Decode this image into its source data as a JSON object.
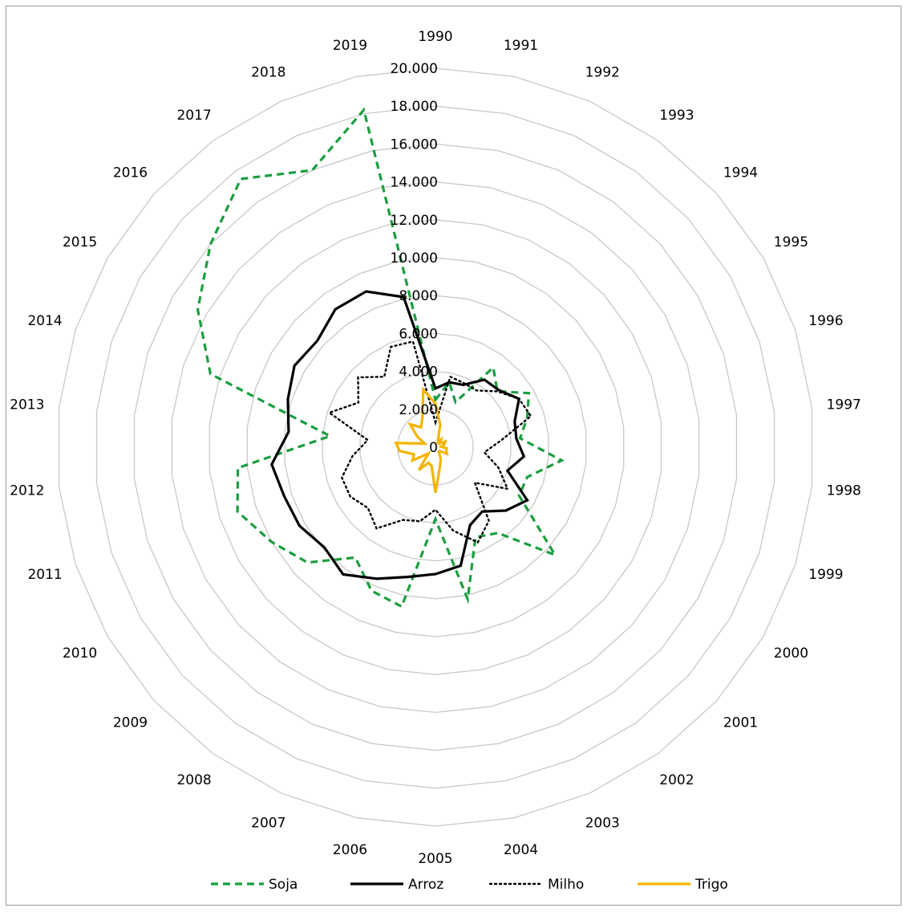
{
  "chart_data": {
    "type": "radar",
    "title": "",
    "categories": [
      "1990",
      "1991",
      "1992",
      "1993",
      "1994",
      "1995",
      "1996",
      "1997",
      "1998",
      "1999",
      "2000",
      "2001",
      "2002",
      "2003",
      "2004",
      "2005",
      "2006",
      "2007",
      "2008",
      "2009",
      "2010",
      "2011",
      "2012",
      "2013",
      "2014",
      "2015",
      "2016",
      "2017",
      "2018",
      "2019"
    ],
    "radial_ticks": [
      "0",
      "2.000",
      "4.000",
      "6.000",
      "8.000",
      "10.000",
      "12.000",
      "14.000",
      "16.000",
      "18.000",
      "20.000"
    ],
    "rlim": [
      0,
      20000
    ],
    "grid": true,
    "legend_position": "bottom",
    "series": [
      {
        "name": "Soja",
        "color": "#1a9e3f",
        "style": "dashed",
        "values": [
          2500,
          3500,
          2600,
          5200,
          4400,
          5700,
          5100,
          4500,
          6700,
          5100,
          5100,
          8500,
          5600,
          5200,
          8200,
          3800,
          8600,
          8300,
          7200,
          9100,
          10000,
          11000,
          10500,
          5600,
          12500,
          14500,
          16000,
          17500,
          16000,
          18200
        ]
      },
      {
        "name": "Arroz",
        "color": "#000000",
        "style": "solid",
        "values": [
          3100,
          3500,
          3600,
          4400,
          4500,
          5100,
          4400,
          4300,
          4700,
          4000,
          5600,
          5000,
          4200,
          4500,
          6400,
          6700,
          7000,
          7600,
          8300,
          7900,
          8300,
          8400,
          8700,
          7800,
          8200,
          8600,
          8400,
          9000,
          9000,
          8100
        ]
      },
      {
        "name": "Milho",
        "color": "#000000",
        "style": "dotted",
        "values": [
          1300,
          3800,
          3700,
          3700,
          4400,
          5100,
          5300,
          3500,
          2600,
          3500,
          4400,
          2800,
          4800,
          5500,
          4500,
          3300,
          4000,
          4200,
          5300,
          4800,
          5200,
          5200,
          4400,
          3600,
          5900,
          4700,
          5500,
          4600,
          5800,
          5700
        ]
      },
      {
        "name": "Trigo",
        "color": "#f4b400",
        "style": "solid",
        "values": [
          2300,
          1200,
          300,
          500,
          300,
          600,
          500,
          300,
          600,
          600,
          700,
          300,
          300,
          700,
          1100,
          2400,
          1000,
          900,
          1500,
          500,
          1400,
          1200,
          1900,
          2100,
          600,
          1100,
          1800,
          1300,
          1700,
          3100
        ]
      }
    ]
  }
}
